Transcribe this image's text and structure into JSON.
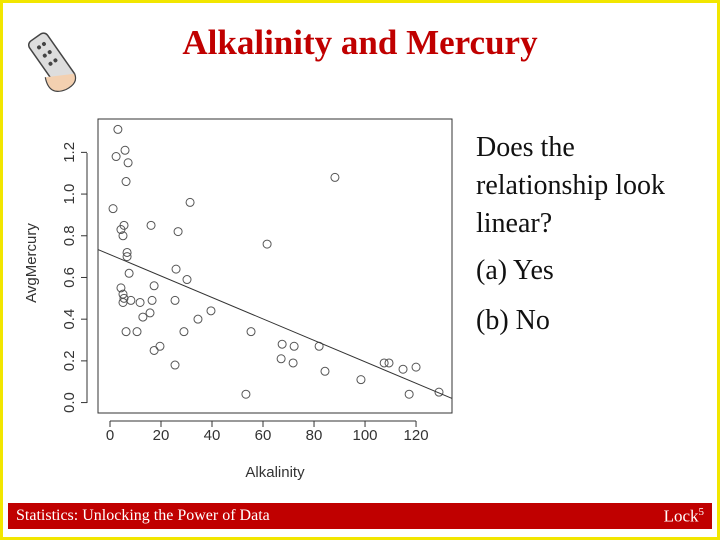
{
  "slide": {
    "title": "Alkalinity and Mercury",
    "question": "Does the relationship look linear?",
    "options": [
      "(a) Yes",
      "(b) No"
    ],
    "footer_left": "Statistics: Unlocking the Power of Data",
    "footer_right": {
      "text": "Lock",
      "superscript": "5"
    }
  },
  "chart_data": {
    "type": "scatter",
    "x_label": "Alkalinity",
    "y_label": "AvgMercury",
    "x": [
      3.1,
      2.4,
      5.9,
      7.1,
      6.3,
      1.2,
      5.5,
      4.3,
      5.1,
      6.7,
      6.7,
      7.5,
      16.1,
      31.4,
      26.7,
      25.9,
      30.2,
      4.3,
      5.1,
      5.5,
      5.1,
      8.2,
      11.8,
      17.3,
      16.5,
      25.5,
      6.3,
      10.6,
      12.9,
      15.7,
      29.0,
      34.5,
      39.6,
      17.3,
      19.6,
      25.5,
      55.3,
      61.6,
      88.2,
      53.3,
      67.5,
      72.2,
      67.1,
      71.8,
      82.0,
      84.3,
      98.4,
      107.5,
      109.4,
      114.9,
      120.0,
      117.3,
      129.0
    ],
    "values": [
      1.31,
      1.18,
      1.21,
      1.15,
      1.06,
      0.93,
      0.85,
      0.83,
      0.8,
      0.72,
      0.7,
      0.62,
      0.85,
      0.96,
      0.82,
      0.64,
      0.59,
      0.55,
      0.52,
      0.5,
      0.48,
      0.49,
      0.48,
      0.56,
      0.49,
      0.49,
      0.34,
      0.34,
      0.41,
      0.43,
      0.34,
      0.4,
      0.44,
      0.25,
      0.27,
      0.18,
      0.34,
      0.76,
      1.08,
      0.04,
      0.28,
      0.27,
      0.21,
      0.19,
      0.27,
      0.15,
      0.11,
      0.19,
      0.19,
      0.16,
      0.17,
      0.04,
      0.05
    ],
    "color": "#555555",
    "fit_line": {
      "x": [
        -4.7,
        134.1
      ],
      "values": [
        0.734,
        0.02
      ],
      "color": "#333333"
    },
    "xlim": [
      -4.7,
      134.1
    ],
    "ylim": [
      -0.05,
      1.36
    ],
    "xticks": [
      0,
      20,
      40,
      60,
      80,
      100,
      120
    ],
    "yticks": [
      {
        "value": 0,
        "label": "0.0"
      },
      0.2,
      0.4,
      0.6,
      0.8,
      {
        "value": 1,
        "label": "1.0"
      },
      1.2
    ]
  }
}
